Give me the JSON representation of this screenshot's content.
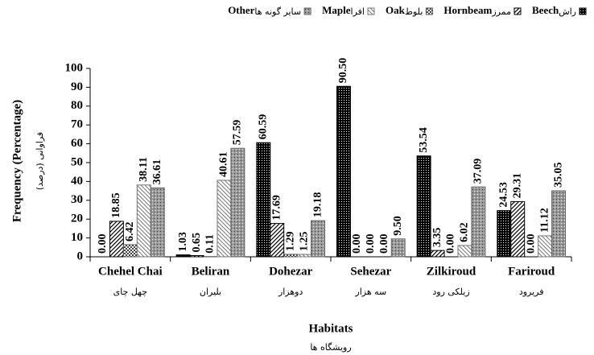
{
  "chart_data": {
    "type": "bar",
    "y_label": "Frequency (Percentage)",
    "y_label_fa": "فراوانی (درصد)",
    "x_label": "Habitats",
    "x_label_fa": "رویشگاه ها",
    "categories": [
      "Chehel Chai",
      "Beliran",
      "Dohezar",
      "Sehezar",
      "Zilkiroud",
      "Fariroud"
    ],
    "categories_fa": [
      "چهل چای",
      "بلیران",
      "دوهزار",
      "سه هزار",
      "زیلکی رود",
      "فریرود"
    ],
    "ylim": [
      0,
      100
    ],
    "yticks": [
      0,
      10,
      20,
      30,
      40,
      50,
      60,
      70,
      80,
      90,
      100
    ],
    "series": [
      {
        "name": "Beech",
        "name_fa": "راش",
        "color": "#000000",
        "pattern": "dots-dark",
        "values": [
          0,
          1.03,
          60.59,
          90.5,
          53.54,
          24.53
        ],
        "value_labels": [
          "0.00",
          "1.03",
          "60.59",
          "90.50",
          "53.54",
          "24.53"
        ]
      },
      {
        "name": "Hornbeam",
        "name_fa": "ممرز",
        "color": "#000000",
        "pattern": "diag",
        "values": [
          18.85,
          0.65,
          17.69,
          0,
          3.35,
          29.31
        ],
        "value_labels": [
          "18.85",
          "0.65",
          "17.69",
          "0.00",
          "3.35",
          "29.31"
        ]
      },
      {
        "name": "Oak",
        "name_fa": "بلوط",
        "color": "#555555",
        "pattern": "check",
        "values": [
          6.42,
          0.11,
          1.29,
          0,
          0,
          0
        ],
        "value_labels": [
          "6.42",
          "0.11",
          "1.29",
          "0.00",
          "0.00",
          "0.00"
        ]
      },
      {
        "name": "Maple",
        "name_fa": "افرا",
        "color": "#777777",
        "pattern": "diag-light",
        "values": [
          38.11,
          40.61,
          1.25,
          0,
          6.02,
          11.12
        ],
        "value_labels": [
          "38.11",
          "40.61",
          "1.25",
          "0.00",
          "6.02",
          "11.12"
        ]
      },
      {
        "name": "Other",
        "name_fa": "سایر گونه ها",
        "color": "#666666",
        "pattern": "dots-gray",
        "values": [
          36.61,
          57.59,
          19.18,
          9.5,
          37.09,
          35.05
        ],
        "value_labels": [
          "36.61",
          "57.59",
          "19.18",
          "9.50",
          "37.09",
          "35.05"
        ]
      }
    ]
  }
}
